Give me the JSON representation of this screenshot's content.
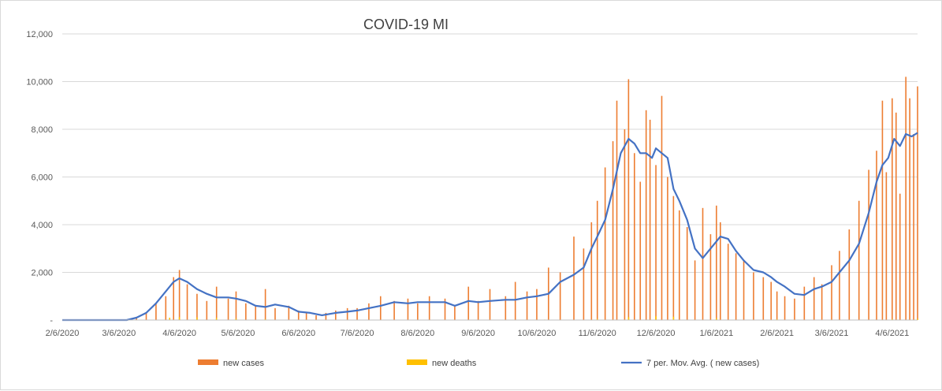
{
  "chart_data": {
    "type": "bar",
    "title": "COVID-19 MI",
    "xlabel": "",
    "ylabel": "",
    "ylim": [
      0,
      12000
    ],
    "yticks": [
      0,
      2000,
      4000,
      6000,
      8000,
      10000,
      12000
    ],
    "ytick_labels": [
      "-",
      "2,000",
      "4,000",
      "6,000",
      "8,000",
      "10,000",
      "12,000"
    ],
    "x_start": "2020-02-06",
    "x_end": "2021-04-19",
    "xticks": [
      "2020-02-06",
      "2020-03-06",
      "2020-04-06",
      "2020-05-06",
      "2020-06-06",
      "2020-07-06",
      "2020-08-06",
      "2020-09-06",
      "2020-10-06",
      "2020-11-06",
      "2020-12-06",
      "2021-01-06",
      "2021-02-06",
      "2021-03-06",
      "2021-04-06"
    ],
    "xtick_labels": [
      "2/6/2020",
      "3/6/2020",
      "4/6/2020",
      "5/6/2020",
      "6/6/2020",
      "7/6/2020",
      "8/6/2020",
      "9/6/2020",
      "10/6/2020",
      "11/6/2020",
      "12/6/2020",
      "1/6/2021",
      "2/6/2021",
      "3/6/2021",
      "4/6/2021"
    ],
    "grid": "horizontal",
    "legend_position": "bottom",
    "colors": {
      "new_cases": "#ed7d31",
      "new_deaths": "#ffc000",
      "moving_avg": "#4472c4",
      "grid": "#d9d9d9"
    },
    "series": [
      {
        "name": "new cases",
        "type": "bar",
        "points": [
          [
            "2020-03-10",
            0
          ],
          [
            "2020-03-15",
            80
          ],
          [
            "2020-03-20",
            300
          ],
          [
            "2020-03-25",
            700
          ],
          [
            "2020-03-30",
            1000
          ],
          [
            "2020-04-03",
            1800
          ],
          [
            "2020-04-06",
            2100
          ],
          [
            "2020-04-10",
            1500
          ],
          [
            "2020-04-15",
            1100
          ],
          [
            "2020-04-20",
            800
          ],
          [
            "2020-04-25",
            1400
          ],
          [
            "2020-05-01",
            900
          ],
          [
            "2020-05-05",
            1200
          ],
          [
            "2020-05-10",
            700
          ],
          [
            "2020-05-15",
            600
          ],
          [
            "2020-05-20",
            1300
          ],
          [
            "2020-05-25",
            500
          ],
          [
            "2020-06-01",
            600
          ],
          [
            "2020-06-06",
            400
          ],
          [
            "2020-06-10",
            300
          ],
          [
            "2020-06-15",
            200
          ],
          [
            "2020-06-20",
            300
          ],
          [
            "2020-06-25",
            400
          ],
          [
            "2020-07-01",
            500
          ],
          [
            "2020-07-06",
            500
          ],
          [
            "2020-07-12",
            700
          ],
          [
            "2020-07-18",
            1000
          ],
          [
            "2020-07-25",
            800
          ],
          [
            "2020-08-01",
            900
          ],
          [
            "2020-08-06",
            700
          ],
          [
            "2020-08-12",
            1000
          ],
          [
            "2020-08-20",
            900
          ],
          [
            "2020-08-25",
            600
          ],
          [
            "2020-09-01",
            1400
          ],
          [
            "2020-09-06",
            800
          ],
          [
            "2020-09-12",
            1300
          ],
          [
            "2020-09-20",
            1000
          ],
          [
            "2020-09-25",
            1600
          ],
          [
            "2020-10-01",
            1200
          ],
          [
            "2020-10-06",
            1300
          ],
          [
            "2020-10-12",
            2200
          ],
          [
            "2020-10-18",
            2000
          ],
          [
            "2020-10-25",
            3500
          ],
          [
            "2020-10-30",
            3000
          ],
          [
            "2020-11-03",
            4100
          ],
          [
            "2020-11-06",
            5000
          ],
          [
            "2020-11-10",
            6400
          ],
          [
            "2020-11-14",
            7500
          ],
          [
            "2020-11-16",
            9200
          ],
          [
            "2020-11-20",
            8000
          ],
          [
            "2020-11-22",
            10100
          ],
          [
            "2020-11-25",
            7000
          ],
          [
            "2020-11-28",
            5800
          ],
          [
            "2020-12-01",
            8800
          ],
          [
            "2020-12-03",
            8400
          ],
          [
            "2020-12-06",
            6500
          ],
          [
            "2020-12-09",
            9400
          ],
          [
            "2020-12-12",
            6000
          ],
          [
            "2020-12-15",
            5200
          ],
          [
            "2020-12-18",
            4600
          ],
          [
            "2020-12-22",
            3900
          ],
          [
            "2020-12-26",
            2500
          ],
          [
            "2020-12-30",
            4700
          ],
          [
            "2021-01-03",
            3600
          ],
          [
            "2021-01-06",
            4800
          ],
          [
            "2021-01-08",
            4100
          ],
          [
            "2021-01-12",
            3200
          ],
          [
            "2021-01-16",
            2800
          ],
          [
            "2021-01-20",
            2500
          ],
          [
            "2021-01-25",
            2000
          ],
          [
            "2021-01-30",
            1800
          ],
          [
            "2021-02-03",
            1600
          ],
          [
            "2021-02-06",
            1200
          ],
          [
            "2021-02-10",
            1000
          ],
          [
            "2021-02-15",
            900
          ],
          [
            "2021-02-20",
            1400
          ],
          [
            "2021-02-25",
            1800
          ],
          [
            "2021-03-01",
            1500
          ],
          [
            "2021-03-06",
            2300
          ],
          [
            "2021-03-10",
            2900
          ],
          [
            "2021-03-15",
            3800
          ],
          [
            "2021-03-20",
            5000
          ],
          [
            "2021-03-25",
            6300
          ],
          [
            "2021-03-29",
            7100
          ],
          [
            "2021-04-01",
            9200
          ],
          [
            "2021-04-03",
            6200
          ],
          [
            "2021-04-06",
            9300
          ],
          [
            "2021-04-08",
            8700
          ],
          [
            "2021-04-10",
            5300
          ],
          [
            "2021-04-13",
            10200
          ],
          [
            "2021-04-15",
            9300
          ],
          [
            "2021-04-17",
            7800
          ],
          [
            "2021-04-19",
            9800
          ]
        ]
      },
      {
        "name": "new deaths",
        "type": "bar",
        "points": [
          [
            "2020-03-20",
            5
          ],
          [
            "2020-04-01",
            100
          ],
          [
            "2020-04-06",
            120
          ],
          [
            "2020-04-15",
            110
          ],
          [
            "2020-04-25",
            90
          ],
          [
            "2020-05-05",
            60
          ],
          [
            "2020-05-20",
            40
          ],
          [
            "2020-06-10",
            20
          ],
          [
            "2020-07-10",
            10
          ],
          [
            "2020-08-10",
            10
          ],
          [
            "2020-09-10",
            10
          ],
          [
            "2020-10-10",
            20
          ],
          [
            "2020-11-06",
            50
          ],
          [
            "2020-11-22",
            120
          ],
          [
            "2020-12-06",
            160
          ],
          [
            "2020-12-15",
            140
          ],
          [
            "2021-01-06",
            80
          ],
          [
            "2021-02-06",
            40
          ],
          [
            "2021-03-06",
            20
          ],
          [
            "2021-04-06",
            40
          ],
          [
            "2021-04-19",
            60
          ]
        ]
      },
      {
        "name": "7 per. Mov. Avg. ( new cases)",
        "type": "line",
        "points": [
          [
            "2020-02-06",
            0
          ],
          [
            "2020-03-10",
            0
          ],
          [
            "2020-03-15",
            100
          ],
          [
            "2020-03-20",
            300
          ],
          [
            "2020-03-25",
            700
          ],
          [
            "2020-03-30",
            1200
          ],
          [
            "2020-04-03",
            1600
          ],
          [
            "2020-04-06",
            1750
          ],
          [
            "2020-04-10",
            1600
          ],
          [
            "2020-04-15",
            1300
          ],
          [
            "2020-04-20",
            1100
          ],
          [
            "2020-04-25",
            950
          ],
          [
            "2020-05-01",
            950
          ],
          [
            "2020-05-05",
            900
          ],
          [
            "2020-05-10",
            800
          ],
          [
            "2020-05-15",
            600
          ],
          [
            "2020-05-20",
            550
          ],
          [
            "2020-05-25",
            650
          ],
          [
            "2020-06-01",
            550
          ],
          [
            "2020-06-06",
            350
          ],
          [
            "2020-06-12",
            300
          ],
          [
            "2020-06-18",
            200
          ],
          [
            "2020-06-25",
            300
          ],
          [
            "2020-07-01",
            350
          ],
          [
            "2020-07-06",
            400
          ],
          [
            "2020-07-12",
            500
          ],
          [
            "2020-07-18",
            600
          ],
          [
            "2020-07-25",
            750
          ],
          [
            "2020-08-01",
            700
          ],
          [
            "2020-08-06",
            750
          ],
          [
            "2020-08-12",
            750
          ],
          [
            "2020-08-20",
            750
          ],
          [
            "2020-08-25",
            600
          ],
          [
            "2020-09-01",
            800
          ],
          [
            "2020-09-06",
            750
          ],
          [
            "2020-09-12",
            800
          ],
          [
            "2020-09-20",
            850
          ],
          [
            "2020-09-25",
            850
          ],
          [
            "2020-10-01",
            950
          ],
          [
            "2020-10-06",
            1000
          ],
          [
            "2020-10-12",
            1100
          ],
          [
            "2020-10-18",
            1600
          ],
          [
            "2020-10-25",
            1900
          ],
          [
            "2020-10-30",
            2200
          ],
          [
            "2020-11-03",
            3000
          ],
          [
            "2020-11-06",
            3500
          ],
          [
            "2020-11-10",
            4200
          ],
          [
            "2020-11-14",
            5500
          ],
          [
            "2020-11-18",
            7000
          ],
          [
            "2020-11-22",
            7600
          ],
          [
            "2020-11-25",
            7400
          ],
          [
            "2020-11-28",
            7000
          ],
          [
            "2020-12-01",
            7000
          ],
          [
            "2020-12-04",
            6800
          ],
          [
            "2020-12-06",
            7200
          ],
          [
            "2020-12-09",
            7000
          ],
          [
            "2020-12-12",
            6800
          ],
          [
            "2020-12-15",
            5500
          ],
          [
            "2020-12-18",
            5000
          ],
          [
            "2020-12-22",
            4200
          ],
          [
            "2020-12-26",
            3000
          ],
          [
            "2020-12-30",
            2600
          ],
          [
            "2021-01-03",
            3000
          ],
          [
            "2021-01-06",
            3300
          ],
          [
            "2021-01-08",
            3500
          ],
          [
            "2021-01-12",
            3400
          ],
          [
            "2021-01-16",
            2900
          ],
          [
            "2021-01-20",
            2500
          ],
          [
            "2021-01-25",
            2100
          ],
          [
            "2021-01-30",
            2000
          ],
          [
            "2021-02-03",
            1800
          ],
          [
            "2021-02-06",
            1600
          ],
          [
            "2021-02-10",
            1400
          ],
          [
            "2021-02-15",
            1100
          ],
          [
            "2021-02-20",
            1050
          ],
          [
            "2021-02-25",
            1300
          ],
          [
            "2021-03-01",
            1400
          ],
          [
            "2021-03-06",
            1600
          ],
          [
            "2021-03-10",
            2000
          ],
          [
            "2021-03-15",
            2500
          ],
          [
            "2021-03-20",
            3200
          ],
          [
            "2021-03-25",
            4500
          ],
          [
            "2021-03-29",
            5800
          ],
          [
            "2021-04-01",
            6500
          ],
          [
            "2021-04-04",
            6800
          ],
          [
            "2021-04-07",
            7600
          ],
          [
            "2021-04-10",
            7300
          ],
          [
            "2021-04-13",
            7800
          ],
          [
            "2021-04-16",
            7700
          ],
          [
            "2021-04-19",
            7850
          ]
        ]
      }
    ]
  },
  "legend": {
    "items": [
      {
        "label": "new cases",
        "color": "#ed7d31",
        "marker": "square"
      },
      {
        "label": "new deaths",
        "color": "#ffc000",
        "marker": "square"
      },
      {
        "label": "7 per. Mov. Avg. ( new cases)",
        "color": "#4472c4",
        "marker": "line"
      }
    ]
  }
}
